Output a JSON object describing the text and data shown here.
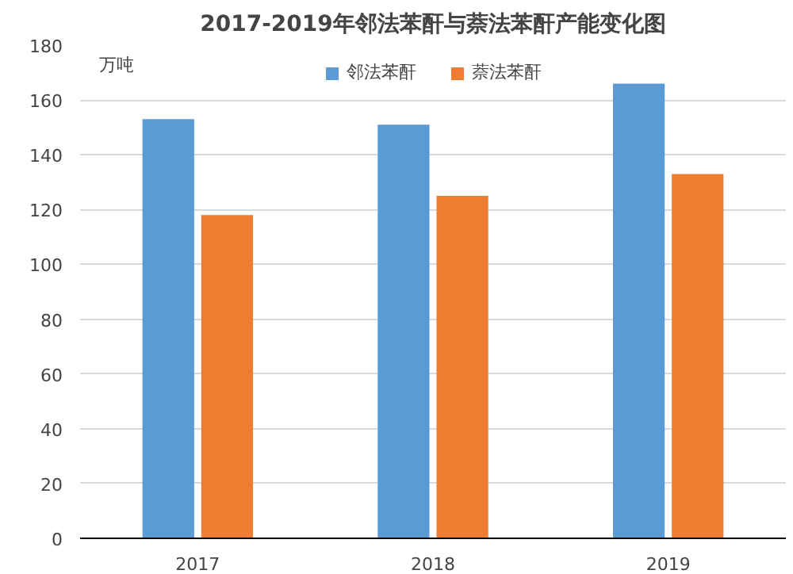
{
  "chart_data": {
    "type": "bar",
    "title": "2017-2019年邻法苯酐与萘法苯酐产能变化图",
    "ylabel": "万吨",
    "categories": [
      "2017",
      "2018",
      "2019"
    ],
    "series": [
      {
        "name": "邻法苯酐",
        "color": "#5b9bd5",
        "values": [
          153,
          151,
          166
        ]
      },
      {
        "name": "萘法苯酐",
        "color": "#ed7d31",
        "values": [
          118,
          125,
          133
        ]
      }
    ],
    "ylim": [
      0,
      180
    ],
    "yticks": [
      0,
      20,
      40,
      60,
      80,
      100,
      120,
      140,
      160,
      180
    ],
    "grid": "y",
    "legend": "top"
  }
}
